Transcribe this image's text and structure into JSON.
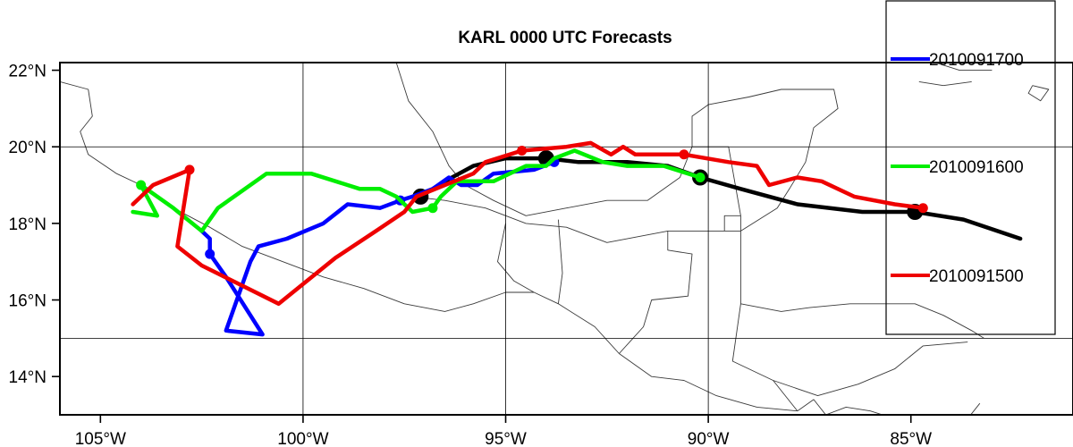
{
  "chart_data": {
    "type": "line",
    "title": "KARL 0000 UTC Forecasts",
    "map": {
      "lon_range": [
        -106,
        -81
      ],
      "lat_range": [
        13,
        22.2
      ],
      "x_ticks": [
        -105,
        -100,
        -95,
        -90,
        -85
      ],
      "x_tick_labels": [
        "105°W",
        "100°W",
        "95°W",
        "90°W",
        "85°W"
      ],
      "y_ticks": [
        14,
        16,
        18,
        20,
        22
      ],
      "y_tick_labels": [
        "14°N",
        "16°N",
        "18°N",
        "20°N",
        "22°N"
      ],
      "grid_lon": [
        -100,
        -95,
        -90
      ],
      "grid_lat": [
        15,
        20
      ],
      "coastlines": [
        [
          [
            -106,
            21.7
          ],
          [
            -105.3,
            21.5
          ],
          [
            -105.2,
            20.8
          ],
          [
            -105.5,
            20.4
          ],
          [
            -105.3,
            19.8
          ],
          [
            -104.6,
            19.3
          ],
          [
            -104.0,
            19.0
          ],
          [
            -103.2,
            18.4
          ],
          [
            -102.3,
            17.9
          ],
          [
            -101.5,
            17.4
          ],
          [
            -100.5,
            17.0
          ],
          [
            -99.5,
            16.6
          ],
          [
            -98.5,
            16.3
          ],
          [
            -97.5,
            15.9
          ],
          [
            -96.5,
            15.7
          ],
          [
            -95.8,
            15.9
          ],
          [
            -95.0,
            16.2
          ],
          [
            -94.3,
            16.2
          ],
          [
            -93.7,
            15.9
          ],
          [
            -92.8,
            15.3
          ],
          [
            -92.2,
            14.6
          ],
          [
            -91.4,
            14.0
          ],
          [
            -90.6,
            13.9
          ],
          [
            -89.8,
            13.5
          ],
          [
            -88.8,
            13.2
          ],
          [
            -87.8,
            13.1
          ]
        ],
        [
          [
            -92.2,
            14.6
          ],
          [
            -91.6,
            15.3
          ],
          [
            -91.4,
            16.0
          ],
          [
            -90.5,
            16.1
          ],
          [
            -90.4,
            17.2
          ],
          [
            -91.0,
            17.3
          ],
          [
            -91.0,
            17.8
          ],
          [
            -89.2,
            17.8
          ]
        ],
        [
          [
            -89.2,
            17.8
          ],
          [
            -89.2,
            15.9
          ],
          [
            -88.2,
            15.7
          ],
          [
            -87.5,
            15.8
          ],
          [
            -86.5,
            15.9
          ],
          [
            -85.5,
            15.9
          ],
          [
            -84.9,
            15.9
          ],
          [
            -84.2,
            15.6
          ],
          [
            -83.5,
            15.2
          ],
          [
            -83.2,
            15.0
          ]
        ],
        [
          [
            -89.2,
            15.9
          ],
          [
            -89.4,
            14.4
          ],
          [
            -88.4,
            13.9
          ],
          [
            -87.8,
            13.1
          ]
        ],
        [
          [
            -88.4,
            13.9
          ],
          [
            -87.3,
            13.5
          ],
          [
            -86.3,
            13.8
          ],
          [
            -85.4,
            14.2
          ],
          [
            -84.7,
            14.8
          ],
          [
            -83.6,
            14.9
          ]
        ],
        [
          [
            -87.8,
            13.1
          ],
          [
            -87.4,
            13.4
          ],
          [
            -87.1,
            13.0
          ],
          [
            -86.6,
            13.2
          ],
          [
            -86.0,
            13.1
          ],
          [
            -85.7,
            13.0
          ]
        ],
        [
          [
            -84.8,
            13.0
          ],
          [
            -85.0,
            12.6
          ],
          [
            -84.2,
            12.6
          ],
          [
            -83.6,
            12.9
          ],
          [
            -83.2,
            13.0
          ]
        ],
        [
          [
            -83.6,
            12.9
          ],
          [
            -83.3,
            13.3
          ]
        ],
        [
          [
            -97.3,
            18.7
          ],
          [
            -96.5,
            18.6
          ],
          [
            -95.5,
            18.4
          ],
          [
            -94.5,
            18.0
          ],
          [
            -93.5,
            17.9
          ],
          [
            -92.5,
            17.5
          ],
          [
            -91.0,
            17.8
          ]
        ],
        [
          [
            -95.0,
            18.0
          ],
          [
            -95.2,
            17.0
          ],
          [
            -94.8,
            16.5
          ],
          [
            -94.3,
            16.2
          ]
        ],
        [
          [
            -93.7,
            18.1
          ],
          [
            -93.6,
            16.7
          ],
          [
            -93.7,
            15.9
          ]
        ],
        [
          [
            -89.2,
            17.8
          ],
          [
            -88.3,
            18.4
          ],
          [
            -88.0,
            18.9
          ],
          [
            -87.6,
            19.6
          ],
          [
            -87.4,
            20.5
          ],
          [
            -86.8,
            21.0
          ],
          [
            -86.9,
            21.5
          ],
          [
            -87.5,
            21.5
          ],
          [
            -88.2,
            21.5
          ],
          [
            -89.0,
            21.3
          ],
          [
            -90.0,
            21.1
          ],
          [
            -90.4,
            20.8
          ],
          [
            -90.4,
            20.0
          ],
          [
            -90.7,
            19.2
          ],
          [
            -91.5,
            18.6
          ],
          [
            -92.5,
            18.6
          ],
          [
            -93.5,
            18.4
          ],
          [
            -94.5,
            18.2
          ],
          [
            -95.3,
            18.6
          ],
          [
            -96.0,
            19.0
          ],
          [
            -96.4,
            19.5
          ],
          [
            -96.8,
            20.4
          ],
          [
            -97.4,
            21.2
          ],
          [
            -97.7,
            22.2
          ]
        ],
        [
          [
            -89.2,
            17.8
          ],
          [
            -89.2,
            18.2
          ],
          [
            -89.6,
            18.2
          ],
          [
            -89.6,
            17.8
          ]
        ],
        [
          [
            -90.4,
            20.0
          ],
          [
            -89.5,
            20.0
          ],
          [
            -89.2,
            18.2
          ]
        ],
        [
          [
            -84.4,
            22.2
          ],
          [
            -83.8,
            22.0
          ],
          [
            -83.0,
            22.0
          ]
        ],
        [
          [
            -84.8,
            21.7
          ],
          [
            -84.2,
            21.6
          ],
          [
            -83.5,
            21.7
          ]
        ],
        [
          [
            -82.0,
            21.6
          ],
          [
            -81.6,
            21.5
          ],
          [
            -81.8,
            21.2
          ],
          [
            -82.1,
            21.4
          ],
          [
            -82.0,
            21.6
          ]
        ]
      ]
    },
    "series": [
      {
        "name": "",
        "color": "#000000",
        "width": 4.5,
        "points": [
          [
            -82.3,
            17.6
          ],
          [
            -83.7,
            18.1
          ],
          [
            -84.9,
            18.3
          ],
          [
            -86.2,
            18.3
          ],
          [
            -87.8,
            18.5
          ],
          [
            -89.2,
            18.9
          ],
          [
            -90.2,
            19.2
          ],
          [
            -91.0,
            19.5
          ],
          [
            -92.0,
            19.6
          ],
          [
            -93.2,
            19.6
          ],
          [
            -94.0,
            19.7
          ],
          [
            -95.0,
            19.7
          ],
          [
            -95.8,
            19.5
          ],
          [
            -96.5,
            19.1
          ],
          [
            -97.1,
            18.7
          ]
        ],
        "markers": [
          [
            -84.9,
            18.3
          ],
          [
            -90.2,
            19.2
          ],
          [
            -94.0,
            19.7
          ],
          [
            -97.1,
            18.7
          ]
        ]
      },
      {
        "name": "2010091700",
        "color": "#0000ff",
        "width": 4.5,
        "points": [
          [
            -93.8,
            19.6
          ],
          [
            -94.3,
            19.4
          ],
          [
            -95.3,
            19.3
          ],
          [
            -95.7,
            19.0
          ],
          [
            -96.1,
            19.0
          ],
          [
            -96.4,
            19.2
          ],
          [
            -96.8,
            18.9
          ],
          [
            -97.3,
            18.7
          ],
          [
            -97.6,
            18.6
          ],
          [
            -98.1,
            18.4
          ],
          [
            -98.9,
            18.5
          ],
          [
            -99.5,
            18.0
          ],
          [
            -100.4,
            17.6
          ],
          [
            -101.1,
            17.4
          ],
          [
            -101.3,
            17.0
          ],
          [
            -101.9,
            15.2
          ],
          [
            -101.0,
            15.1
          ],
          [
            -101.9,
            16.6
          ],
          [
            -102.3,
            17.2
          ],
          [
            -102.3,
            17.6
          ],
          [
            -102.5,
            17.8
          ]
        ],
        "markers": [
          [
            -93.8,
            19.6
          ],
          [
            -97.6,
            18.6
          ],
          [
            -102.3,
            17.2
          ]
        ]
      },
      {
        "name": "2010091600",
        "color": "#00ee00",
        "width": 4.5,
        "points": [
          [
            -90.2,
            19.2
          ],
          [
            -91.1,
            19.5
          ],
          [
            -92.0,
            19.5
          ],
          [
            -92.6,
            19.6
          ],
          [
            -93.3,
            19.9
          ],
          [
            -93.8,
            19.7
          ],
          [
            -94.0,
            19.5
          ],
          [
            -94.5,
            19.5
          ],
          [
            -95.3,
            19.1
          ],
          [
            -96.2,
            19.1
          ],
          [
            -96.6,
            18.7
          ],
          [
            -96.8,
            18.4
          ],
          [
            -97.3,
            18.3
          ],
          [
            -97.7,
            18.7
          ],
          [
            -98.1,
            18.9
          ],
          [
            -98.6,
            18.9
          ],
          [
            -99.8,
            19.3
          ],
          [
            -100.9,
            19.3
          ],
          [
            -102.1,
            18.4
          ],
          [
            -102.5,
            17.8
          ],
          [
            -103.2,
            18.4
          ],
          [
            -104.0,
            19.0
          ],
          [
            -103.6,
            18.2
          ],
          [
            -104.2,
            18.3
          ]
        ],
        "markers": [
          [
            -90.2,
            19.2
          ],
          [
            -96.8,
            18.4
          ],
          [
            -104.0,
            19.0
          ]
        ]
      },
      {
        "name": "2010091500",
        "color": "#ee0000",
        "width": 4.5,
        "points": [
          [
            -84.7,
            18.4
          ],
          [
            -85.4,
            18.5
          ],
          [
            -86.4,
            18.7
          ],
          [
            -87.2,
            19.1
          ],
          [
            -87.8,
            19.2
          ],
          [
            -88.5,
            19.0
          ],
          [
            -88.8,
            19.5
          ],
          [
            -89.5,
            19.6
          ],
          [
            -90.6,
            19.8
          ],
          [
            -91.8,
            19.8
          ],
          [
            -92.1,
            20.0
          ],
          [
            -92.4,
            19.8
          ],
          [
            -92.9,
            20.1
          ],
          [
            -93.5,
            20.0
          ],
          [
            -94.6,
            19.9
          ],
          [
            -95.5,
            19.6
          ],
          [
            -95.8,
            19.3
          ],
          [
            -96.5,
            19.0
          ],
          [
            -97.2,
            18.7
          ],
          [
            -97.5,
            18.3
          ],
          [
            -98.2,
            17.8
          ],
          [
            -99.2,
            17.1
          ],
          [
            -100.6,
            15.9
          ],
          [
            -102.5,
            16.9
          ],
          [
            -103.1,
            17.4
          ],
          [
            -102.8,
            19.4
          ],
          [
            -103.7,
            19.0
          ],
          [
            -104.2,
            18.5
          ]
        ],
        "markers": [
          [
            -84.7,
            18.4
          ],
          [
            -90.6,
            19.8
          ],
          [
            -94.6,
            19.9
          ],
          [
            -102.8,
            19.4
          ]
        ]
      }
    ],
    "legend": {
      "placement": "right",
      "entries": [
        "2010091700",
        "2010091600",
        "2010091500"
      ]
    }
  }
}
